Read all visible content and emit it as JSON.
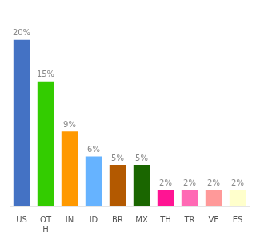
{
  "chart_data": {
    "type": "bar",
    "categories": [
      "US",
      "OT\nH",
      "IN",
      "ID",
      "BR",
      "MX",
      "TH",
      "TR",
      "VE",
      "ES"
    ],
    "values": [
      20,
      15,
      9,
      6,
      5,
      5,
      2,
      2,
      2,
      2
    ],
    "value_labels": [
      "20%",
      "15%",
      "9%",
      "6%",
      "5%",
      "5%",
      "2%",
      "2%",
      "2%",
      "2%"
    ],
    "colors": [
      "#4472c4",
      "#33cc00",
      "#ff9900",
      "#66b3ff",
      "#b35900",
      "#1a6600",
      "#ff1493",
      "#ff69b4",
      "#ff9999",
      "#ffffcc"
    ],
    "ylim": [
      0,
      24
    ],
    "grid": false,
    "data_labels": true,
    "tick_labels": "x"
  }
}
